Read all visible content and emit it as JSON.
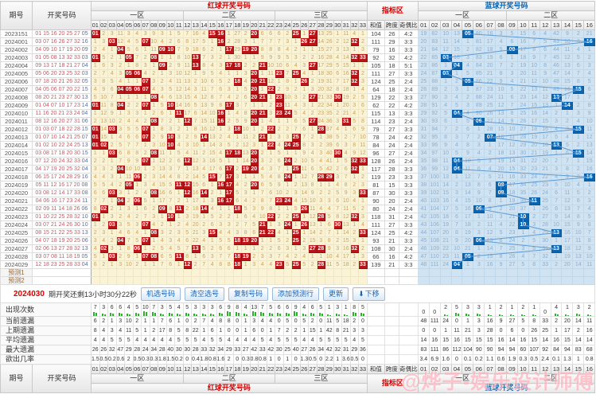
{
  "header": {
    "issue_col": "期号",
    "draw_col": "开奖号码",
    "red_group": "红球开奖号码",
    "indicator_group": "指标区",
    "blue_group": "蓝球开奖号码",
    "red_zones": [
      {
        "label": "一区",
        "span": 11
      },
      {
        "label": "二区",
        "span": 11
      },
      {
        "label": "三区",
        "span": 11
      }
    ],
    "blue_zones": [
      {
        "label": "一区",
        "span": 8
      },
      {
        "label": "二区",
        "span": 8
      }
    ],
    "indicator_cols": [
      "和值",
      "跨度",
      "奇偶比"
    ],
    "red_numbers": [
      "01",
      "02",
      "03",
      "04",
      "05",
      "06",
      "07",
      "08",
      "09",
      "10",
      "11",
      "12",
      "13",
      "14",
      "15",
      "16",
      "17",
      "18",
      "19",
      "20",
      "21",
      "22",
      "23",
      "24",
      "25",
      "26",
      "27",
      "28",
      "29",
      "30",
      "31",
      "32",
      "33"
    ],
    "blue_numbers": [
      "01",
      "02",
      "03",
      "04",
      "05",
      "06",
      "07",
      "08",
      "09",
      "10",
      "11",
      "12",
      "13",
      "14",
      "15",
      "16"
    ]
  },
  "rows": [
    {
      "issue": "2023151",
      "reds": [
        1,
        15,
        16,
        20,
        25,
        27
      ],
      "blue": 5,
      "sum": 104,
      "span": 26,
      "ratio": "4:2"
    },
    {
      "issue": "2024001",
      "reds": [
        3,
        7,
        16,
        26,
        27,
        32
      ],
      "blue": 16,
      "sum": 111,
      "span": 29,
      "ratio": "3:3"
    },
    {
      "issue": "2024002",
      "reds": [
        4,
        9,
        10,
        17,
        19,
        20
      ],
      "blue": 9,
      "sum": 79,
      "span": 16,
      "ratio": "3:3"
    },
    {
      "issue": "2024003",
      "reds": [
        1,
        5,
        8,
        13,
        32,
        33
      ],
      "blue": 3,
      "sum": 92,
      "span": 32,
      "ratio": "4:2"
    },
    {
      "issue": "2024004",
      "reds": [
        9,
        13,
        17,
        18,
        21,
        27
      ],
      "blue": 4,
      "sum": 105,
      "span": 18,
      "ratio": "5:1"
    },
    {
      "issue": "2024005",
      "reds": [
        5,
        6,
        20,
        23,
        25,
        32
      ],
      "blue": 3,
      "sum": 111,
      "span": 27,
      "ratio": "3:3"
    },
    {
      "issue": "2024006",
      "reds": [
        7,
        18,
        20,
        21,
        26,
        32
      ],
      "blue": 5,
      "sum": 124,
      "span": 25,
      "ratio": "2:4"
    },
    {
      "issue": "2024007",
      "reds": [
        4,
        5,
        6,
        7,
        20,
        22
      ],
      "blue": 15,
      "sum": 64,
      "span": 18,
      "ratio": "2:4"
    },
    {
      "issue": "2024008",
      "reds": [
        8,
        20,
        21,
        23,
        27,
        30
      ],
      "blue": 13,
      "sum": 129,
      "span": 22,
      "ratio": "3:3"
    },
    {
      "issue": "2024009",
      "reds": [
        1,
        4,
        7,
        10,
        17,
        23
      ],
      "blue": 14,
      "sum": 62,
      "span": 22,
      "ratio": "4:2"
    },
    {
      "issue": "2024010",
      "reds": [
        11,
        16,
        20,
        21,
        23,
        24
      ],
      "blue": 4,
      "sum": 115,
      "span": 13,
      "ratio": "3:3"
    },
    {
      "issue": "2024011",
      "reds": [
        8,
        12,
        16,
        20,
        27,
        31
      ],
      "blue": 6,
      "sum": 114,
      "span": 23,
      "ratio": "2:4"
    },
    {
      "issue": "2024012",
      "reds": [
        1,
        3,
        7,
        18,
        22,
        28
      ],
      "blue": 15,
      "sum": 79,
      "span": 27,
      "ratio": "3:3"
    },
    {
      "issue": "2024013",
      "reds": [
        1,
        7,
        10,
        14,
        21,
        25
      ],
      "blue": 7,
      "sum": 78,
      "span": 24,
      "ratio": "4:2"
    },
    {
      "issue": "2024014",
      "reds": [
        1,
        2,
        10,
        22,
        24,
        25
      ],
      "blue": 13,
      "sum": 84,
      "span": 24,
      "ratio": "2:4"
    },
    {
      "issue": "2024015",
      "reds": [
        3,
        8,
        17,
        18,
        20,
        30
      ],
      "blue": 15,
      "sum": 96,
      "span": 27,
      "ratio": "2:4"
    },
    {
      "issue": "2024016",
      "reds": [
        7,
        12,
        20,
        24,
        32,
        33
      ],
      "blue": 4,
      "sum": 128,
      "span": 26,
      "ratio": "2:4"
    },
    {
      "issue": "2024017",
      "reds": [
        4,
        17,
        19,
        20,
        25,
        32
      ],
      "blue": 4,
      "sum": 117,
      "span": 28,
      "ratio": "3:3"
    },
    {
      "issue": "2024018",
      "reds": [
        6,
        15,
        17,
        24,
        28,
        29
      ],
      "blue": 16,
      "sum": 119,
      "span": 23,
      "ratio": "3:3"
    },
    {
      "issue": "2024019",
      "reds": [
        5,
        11,
        12,
        16,
        17,
        20
      ],
      "blue": 8,
      "sum": 81,
      "span": 15,
      "ratio": "3:3"
    },
    {
      "issue": "2024020",
      "reds": [
        3,
        8,
        12,
        14,
        17,
        33
      ],
      "blue": 8,
      "sum": 87,
      "span": 30,
      "ratio": "3:3"
    },
    {
      "issue": "2024021",
      "reds": [
        4,
        6,
        16,
        17,
        23,
        24
      ],
      "blue": 11,
      "sum": 90,
      "span": 20,
      "ratio": "2:4"
    },
    {
      "issue": "2024022",
      "reds": [
        2,
        9,
        11,
        14,
        18,
        26
      ],
      "blue": 6,
      "sum": 80,
      "span": 24,
      "ratio": "2:4"
    },
    {
      "issue": "2024023",
      "reds": [
        1,
        10,
        22,
        25,
        28,
        32
      ],
      "blue": 10,
      "sum": 118,
      "span": 31,
      "ratio": "2:4"
    },
    {
      "issue": "2024024",
      "reds": [
        3,
        7,
        21,
        24,
        26,
        30
      ],
      "blue": 10,
      "sum": 111,
      "span": 27,
      "ratio": "3:3"
    },
    {
      "issue": "2024025",
      "reds": [
        8,
        15,
        21,
        22,
        25,
        33
      ],
      "blue": 13,
      "sum": 124,
      "span": 25,
      "ratio": "4:2"
    },
    {
      "issue": "2024026",
      "reds": [
        4,
        7,
        18,
        19,
        20,
        25
      ],
      "blue": 6,
      "sum": 93,
      "span": 21,
      "ratio": "3:3"
    },
    {
      "issue": "2024027",
      "reds": [
        2,
        6,
        13,
        27,
        28,
        32
      ],
      "blue": 13,
      "sum": 108,
      "span": 30,
      "ratio": "2:4"
    },
    {
      "issue": "2024028",
      "reds": [
        3,
        7,
        8,
        11,
        18,
        19
      ],
      "blue": 5,
      "sum": 66,
      "span": 16,
      "ratio": "4:2"
    },
    {
      "issue": "2024029",
      "reds": [
        12,
        18,
        23,
        25,
        28,
        33
      ],
      "blue": 4,
      "sum": 139,
      "span": 21,
      "ratio": "3:3"
    }
  ],
  "predict_rows": [
    "预测1",
    "预测2"
  ],
  "initial_omission": {
    "red": [
      0,
      2,
      3,
      11,
      3,
      4,
      3,
      9,
      3,
      1,
      5,
      7,
      16,
      4,
      0,
      0,
      1,
      27,
      2,
      0,
      6,
      6,
      6,
      2,
      0,
      1,
      0,
      13,
      25,
      1,
      11,
      4,
      1
    ],
    "blue": [
      19,
      82,
      10,
      13,
      0,
      80,
      16,
      3,
      5,
      15,
      6,
      4,
      42,
      9,
      2,
      21
    ]
  },
  "toolbar": {
    "issue": "2024030",
    "countdown": "期开奖还剩13小时30分22秒",
    "buttons": [
      "机选号码",
      "清空选号",
      "复制号码",
      "添加预测行",
      "更新"
    ],
    "down_button": "下移",
    "down_icon": "⬇"
  },
  "stats": {
    "labels": [
      "出现次数",
      "当前遗漏",
      "上期遗漏",
      "平均遗漏",
      "最大遗漏",
      "欲出几率"
    ],
    "red": {
      "appear": [
        7,
        3,
        6,
        6,
        4,
        5,
        10,
        7,
        3,
        5,
        4,
        5,
        3,
        3,
        3,
        6,
        9,
        8,
        4,
        13,
        7,
        5,
        6,
        6,
        9,
        4,
        6,
        5,
        1,
        3,
        1,
        8,
        5
      ],
      "current": [
        6,
        2,
        1,
        3,
        10,
        2,
        1,
        1,
        7,
        6,
        1,
        0,
        2,
        7,
        4,
        8,
        8,
        0,
        1,
        3,
        4,
        4,
        0,
        5,
        0,
        5,
        2,
        0,
        11,
        5,
        18,
        2,
        0
      ],
      "last": [
        8,
        4,
        3,
        4,
        11,
        5,
        1,
        2,
        17,
        8,
        5,
        8,
        22,
        1,
        6,
        1,
        0,
        0,
        1,
        6,
        0,
        1,
        7,
        2,
        2,
        1,
        15,
        1,
        42,
        8,
        21,
        3,
        3
      ],
      "avg": [
        4,
        4,
        5,
        5,
        5,
        4,
        4,
        4,
        4,
        4,
        5,
        5,
        5,
        4,
        5,
        5,
        4,
        4,
        4,
        4,
        5,
        4,
        5,
        5,
        5,
        4,
        4,
        5,
        5,
        5,
        5,
        4,
        5
      ],
      "max": [
        26,
        26,
        32,
        47,
        29,
        28,
        24,
        34,
        28,
        40,
        30,
        30,
        28,
        33,
        32,
        34,
        29,
        33,
        27,
        42,
        33,
        42,
        30,
        25,
        40,
        27,
        26,
        34,
        42,
        32,
        31,
        29,
        36
      ],
      "prob": [
        "1.5",
        "0.5",
        "0.2",
        "0.6",
        "2",
        "0.5",
        "0.3",
        "0.3",
        "1.8",
        "1.5",
        "0.2",
        "0",
        "0.4",
        "1.8",
        "0.8",
        "1.6",
        "2",
        "0",
        "0.3",
        "0.8",
        "0.8",
        "1",
        "0",
        "1",
        "0",
        "1.3",
        "0.5",
        "0",
        "2.2",
        "1",
        "3.6",
        "0.5",
        "0"
      ]
    },
    "blue": {
      "appear": [
        0,
        0,
        2,
        5,
        3,
        3,
        1,
        2,
        1,
        2,
        1,
        0,
        4,
        1,
        3,
        2
      ],
      "current": [
        48,
        111,
        24,
        0,
        1,
        3,
        16,
        9,
        27,
        5,
        8,
        33,
        2,
        20,
        14,
        11
      ],
      "last": [
        0,
        0,
        1,
        11,
        21,
        3,
        28,
        0,
        6,
        0,
        26,
        25,
        1,
        17,
        2,
        16
      ],
      "avg": [
        14,
        16,
        15,
        16,
        15,
        15,
        15,
        16,
        14,
        16,
        15,
        14,
        16,
        15,
        14,
        14
      ],
      "max": [
        83,
        111,
        86,
        112,
        104,
        90,
        90,
        94,
        94,
        60,
        107,
        92,
        84,
        94,
        83,
        68
      ],
      "prob": [
        "3.4",
        "6.9",
        "1.6",
        "0",
        "0.1",
        "0.2",
        "1.1",
        "0.6",
        "1.9",
        "0.3",
        "0.5",
        "2.4",
        "0.1",
        "1.3",
        "1",
        "0.8"
      ]
    }
  },
  "watermark": "@烨子-娱乐设计师傅",
  "colors": {
    "red_ball": "#b91418",
    "blue_ball": "#0a64af",
    "red_cell_bg": "#fbf3d6",
    "blue_cell_bg": "#cfe3f3",
    "red_miss_text": "#cfa255",
    "blue_miss_text": "#8aafd0",
    "line": "#5e9bd3",
    "bar_green": "#2fae2f"
  }
}
